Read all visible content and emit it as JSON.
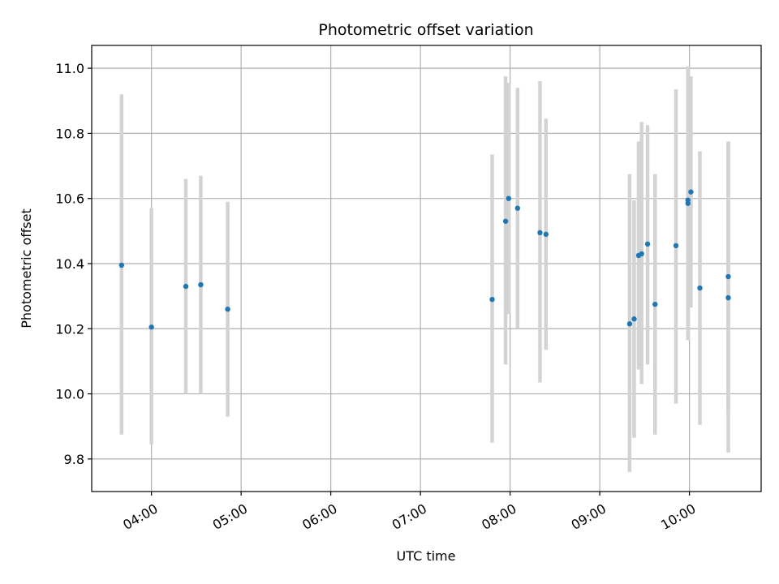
{
  "chart_data": {
    "type": "scatter",
    "title": "Photometric offset variation",
    "xlabel": "UTC time",
    "ylabel": "Photometric offset",
    "x_unit": "UTC time (HH:MM)",
    "xlim": [
      "03:20",
      "10:48"
    ],
    "ylim": [
      9.7,
      11.07
    ],
    "x_ticks": [
      "04:00",
      "05:00",
      "06:00",
      "07:00",
      "08:00",
      "09:00",
      "10:00"
    ],
    "y_ticks": [
      "9.8",
      "10.0",
      "10.2",
      "10.4",
      "10.6",
      "10.8",
      "11.0"
    ],
    "grid": true,
    "marker_color": "#1f77b4",
    "errorbar_color": "#d3d3d3",
    "points": [
      {
        "t": "03:40",
        "y": 10.395,
        "lo": 9.875,
        "hi": 10.92
      },
      {
        "t": "04:00",
        "y": 10.205,
        "lo": 9.845,
        "hi": 10.57
      },
      {
        "t": "04:23",
        "y": 10.33,
        "lo": 10.0,
        "hi": 10.66
      },
      {
        "t": "04:33",
        "y": 10.335,
        "lo": 10.0,
        "hi": 10.67
      },
      {
        "t": "04:51",
        "y": 10.26,
        "lo": 9.93,
        "hi": 10.59
      },
      {
        "t": "07:48",
        "y": 10.29,
        "lo": 9.85,
        "hi": 10.735
      },
      {
        "t": "07:57",
        "y": 10.53,
        "lo": 10.09,
        "hi": 10.975
      },
      {
        "t": "07:59",
        "y": 10.6,
        "lo": 10.245,
        "hi": 10.955
      },
      {
        "t": "08:05",
        "y": 10.57,
        "lo": 10.2,
        "hi": 10.94
      },
      {
        "t": "08:20",
        "y": 10.495,
        "lo": 10.035,
        "hi": 10.96
      },
      {
        "t": "08:24",
        "y": 10.49,
        "lo": 10.135,
        "hi": 10.845
      },
      {
        "t": "09:20",
        "y": 10.215,
        "lo": 9.76,
        "hi": 10.675
      },
      {
        "t": "09:23",
        "y": 10.23,
        "lo": 9.865,
        "hi": 10.595
      },
      {
        "t": "09:26",
        "y": 10.425,
        "lo": 10.075,
        "hi": 10.775
      },
      {
        "t": "09:28",
        "y": 10.43,
        "lo": 10.03,
        "hi": 10.835
      },
      {
        "t": "09:32",
        "y": 10.46,
        "lo": 10.09,
        "hi": 10.825
      },
      {
        "t": "09:37",
        "y": 10.275,
        "lo": 9.875,
        "hi": 10.675
      },
      {
        "t": "09:51",
        "y": 10.455,
        "lo": 9.97,
        "hi": 10.935
      },
      {
        "t": "09:59",
        "y": 10.585,
        "lo": 10.165,
        "hi": 11.005
      },
      {
        "t": "09:59",
        "y": 10.595,
        "lo": 10.185,
        "hi": 11.005
      },
      {
        "t": "10:01",
        "y": 10.62,
        "lo": 10.265,
        "hi": 10.975
      },
      {
        "t": "10:07",
        "y": 10.325,
        "lo": 9.905,
        "hi": 10.745
      },
      {
        "t": "10:26",
        "y": 10.36,
        "lo": 9.945,
        "hi": 10.775
      },
      {
        "t": "10:26",
        "y": 10.295,
        "lo": 9.82,
        "hi": 10.77
      }
    ]
  }
}
